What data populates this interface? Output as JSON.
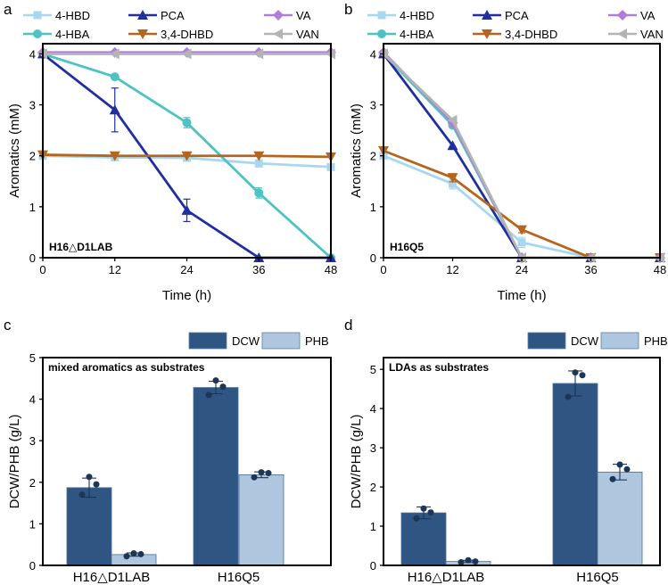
{
  "chart_data": [
    {
      "panel": "a",
      "type": "line",
      "inset_label": "H16△D1LAB",
      "xlabel": "Time (h)",
      "ylabel": "Aromatics (mM)",
      "x": [
        0,
        12,
        24,
        36,
        48
      ],
      "xlim": [
        0,
        48
      ],
      "ylim": [
        0,
        4.2
      ],
      "xticks": [
        "0",
        "12",
        "24",
        "36",
        "48"
      ],
      "yticks": [
        "0",
        "1",
        "2",
        "3",
        "4"
      ],
      "series": [
        {
          "name": "4-HBD",
          "color": "#a8d8ef",
          "marker": "square",
          "values": [
            2.0,
            1.97,
            1.96,
            1.85,
            1.78
          ],
          "errors": [
            0,
            0,
            0,
            0,
            0
          ]
        },
        {
          "name": "4-HBA",
          "color": "#4fc3c3",
          "marker": "circle",
          "values": [
            4.0,
            3.55,
            2.65,
            1.27,
            0.0
          ],
          "errors": [
            0,
            0,
            0.1,
            0.1,
            0
          ]
        },
        {
          "name": "PCA",
          "color": "#1f2fa0",
          "marker": "triangle-up",
          "values": [
            4.0,
            2.9,
            0.93,
            0.0,
            0.0
          ],
          "errors": [
            0,
            0.43,
            0.22,
            0,
            0
          ]
        },
        {
          "name": "3,4-DHBD",
          "color": "#b5651d",
          "marker": "triangle-down",
          "values": [
            2.02,
            2.0,
            2.0,
            2.0,
            1.98
          ],
          "errors": [
            0,
            0,
            0,
            0,
            0
          ]
        },
        {
          "name": "VA",
          "color": "#b07ed8",
          "marker": "diamond",
          "values": [
            4.03,
            4.03,
            4.03,
            4.03,
            4.03
          ],
          "errors": [
            0,
            0,
            0,
            0,
            0
          ]
        },
        {
          "name": "VAN",
          "color": "#b4b4b4",
          "marker": "triangle-left",
          "values": [
            4.0,
            4.0,
            4.0,
            4.0,
            4.0
          ],
          "errors": [
            0,
            0,
            0,
            0,
            0
          ]
        }
      ]
    },
    {
      "panel": "b",
      "type": "line",
      "inset_label": "H16Q5",
      "xlabel": "Time (h)",
      "ylabel": "Aromatics (mM)",
      "x": [
        0,
        12,
        24,
        36,
        48
      ],
      "xlim": [
        0,
        48
      ],
      "ylim": [
        0,
        4.2
      ],
      "xticks": [
        "0",
        "12",
        "24",
        "36",
        "48"
      ],
      "yticks": [
        "0",
        "1",
        "2",
        "3",
        "4"
      ],
      "series": [
        {
          "name": "4-HBD",
          "color": "#a8d8ef",
          "marker": "square",
          "values": [
            2.0,
            1.45,
            0.3,
            0.0,
            0.0
          ],
          "errors": [
            0,
            0.1,
            0.1,
            0,
            0
          ]
        },
        {
          "name": "4-HBA",
          "color": "#4fc3c3",
          "marker": "circle",
          "values": [
            4.0,
            2.6,
            0.0,
            0.0,
            0.0
          ],
          "errors": [
            0,
            0,
            0,
            0,
            0
          ]
        },
        {
          "name": "PCA",
          "color": "#1f2fa0",
          "marker": "triangle-up",
          "values": [
            4.0,
            2.2,
            0.0,
            0.0,
            0.0
          ],
          "errors": [
            0,
            0,
            0,
            0,
            0
          ]
        },
        {
          "name": "3,4-DHBD",
          "color": "#b5651d",
          "marker": "triangle-down",
          "values": [
            2.1,
            1.57,
            0.55,
            0.0,
            0.0
          ],
          "errors": [
            0,
            0.08,
            0.06,
            0,
            0
          ]
        },
        {
          "name": "VA",
          "color": "#b07ed8",
          "marker": "diamond",
          "values": [
            4.03,
            2.65,
            0.0,
            0.0,
            0.0
          ],
          "errors": [
            0,
            0,
            0,
            0,
            0
          ]
        },
        {
          "name": "VAN",
          "color": "#b4b4b4",
          "marker": "triangle-left",
          "values": [
            4.0,
            2.7,
            0.0,
            0.0,
            0.0
          ],
          "errors": [
            0,
            0,
            0,
            0,
            0
          ]
        }
      ]
    },
    {
      "panel": "c",
      "type": "bar",
      "inset_label": "mixed aromatics as substrates",
      "xlabel": "",
      "ylabel": "DCW/PHB (g/L)",
      "categories": [
        "H16△D1LAB",
        "H16Q5"
      ],
      "ylim": [
        0,
        5
      ],
      "yticks": [
        "0",
        "1",
        "2",
        "3",
        "4",
        "5"
      ],
      "series": [
        {
          "name": "DCW",
          "color": "#2f5583",
          "values": [
            1.87,
            4.28
          ],
          "errors": [
            0.23,
            0.15
          ],
          "points": [
            [
              2.13,
              1.95,
              1.7
            ],
            [
              4.45,
              4.3,
              4.1
            ]
          ]
        },
        {
          "name": "PHB",
          "color": "#afc7de",
          "values": [
            0.26,
            2.18
          ],
          "errors": [
            0.04,
            0.07
          ],
          "points": [
            [
              0.29,
              0.27,
              0.22
            ],
            [
              2.24,
              2.22,
              2.12
            ]
          ]
        }
      ]
    },
    {
      "panel": "d",
      "type": "bar",
      "inset_label": "LDAs as substrates",
      "xlabel": "",
      "ylabel": "DCW/PHB (g/L)",
      "categories": [
        "H16△D1LAB",
        "H16Q5"
      ],
      "ylim": [
        0,
        5.3
      ],
      "yticks": [
        "0",
        "1",
        "2",
        "3",
        "4",
        "5"
      ],
      "series": [
        {
          "name": "DCW",
          "color": "#2f5583",
          "values": [
            1.34,
            4.64
          ],
          "errors": [
            0.15,
            0.32
          ],
          "points": [
            [
              1.45,
              1.35,
              1.2
            ],
            [
              4.92,
              4.85,
              4.3
            ]
          ]
        },
        {
          "name": "PHB",
          "color": "#afc7de",
          "values": [
            0.1,
            2.38
          ],
          "errors": [
            0.03,
            0.2
          ],
          "points": [
            [
              0.13,
              0.1,
              0.08
            ],
            [
              2.57,
              2.45,
              2.2
            ]
          ]
        }
      ]
    }
  ]
}
